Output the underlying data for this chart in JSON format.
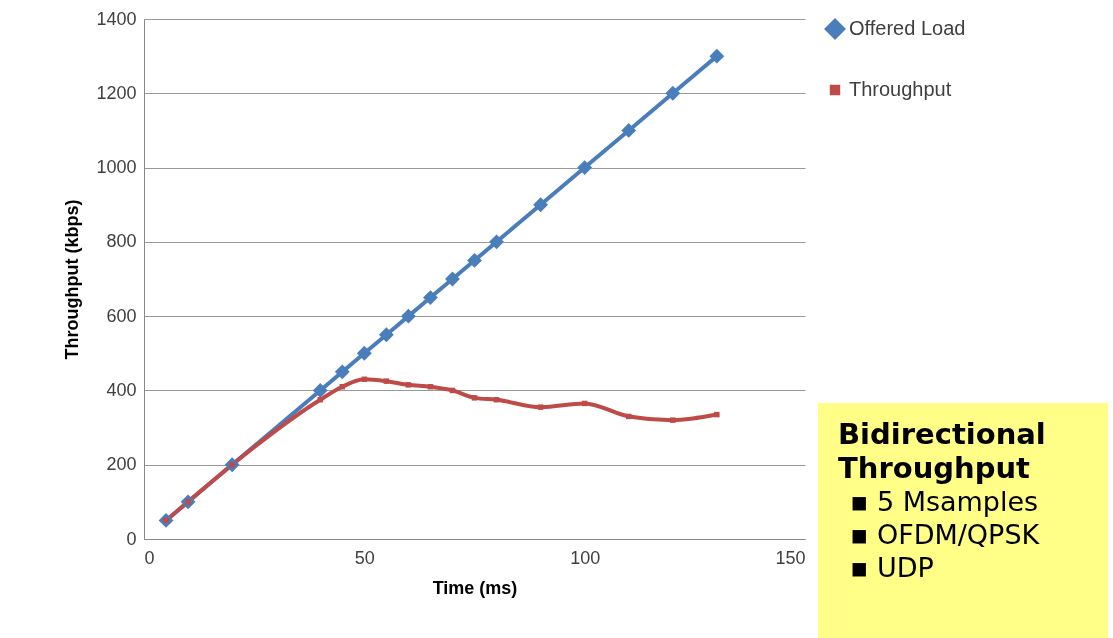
{
  "chart_data": {
    "type": "line",
    "xlabel": "Time (ms)",
    "ylabel": "Throughput (kbps)",
    "xlim": [
      0,
      150
    ],
    "xticks": [
      0,
      50,
      100,
      150
    ],
    "ylim": [
      0,
      1400
    ],
    "yticks": [
      0,
      200,
      400,
      600,
      800,
      1000,
      1200,
      1400
    ],
    "grid": "y",
    "legend": "right",
    "series": [
      {
        "name": "Offered Load",
        "color": "#4a7ebb",
        "marker": "diamond",
        "x": [
          5,
          10,
          20,
          40,
          45,
          50,
          55,
          60,
          65,
          70,
          75,
          80,
          90,
          100,
          110,
          120,
          130
        ],
        "values": [
          50,
          100,
          200,
          400,
          450,
          500,
          550,
          600,
          650,
          700,
          750,
          800,
          900,
          1000,
          1100,
          1200,
          1300
        ]
      },
      {
        "name": "Throughput",
        "color": "#be4b48",
        "marker": "square",
        "x": [
          5,
          10,
          20,
          40,
          45,
          50,
          55,
          60,
          65,
          70,
          75,
          80,
          90,
          100,
          110,
          120,
          130
        ],
        "values": [
          50,
          100,
          200,
          375,
          410,
          430,
          425,
          415,
          410,
          400,
          380,
          375,
          355,
          365,
          330,
          320,
          335
        ]
      }
    ],
    "annotations": [
      "Bidirectional Throughput",
      "▪ 5 Msamples",
      "▪ OFDM/QPSK",
      "▪ UDP"
    ]
  }
}
